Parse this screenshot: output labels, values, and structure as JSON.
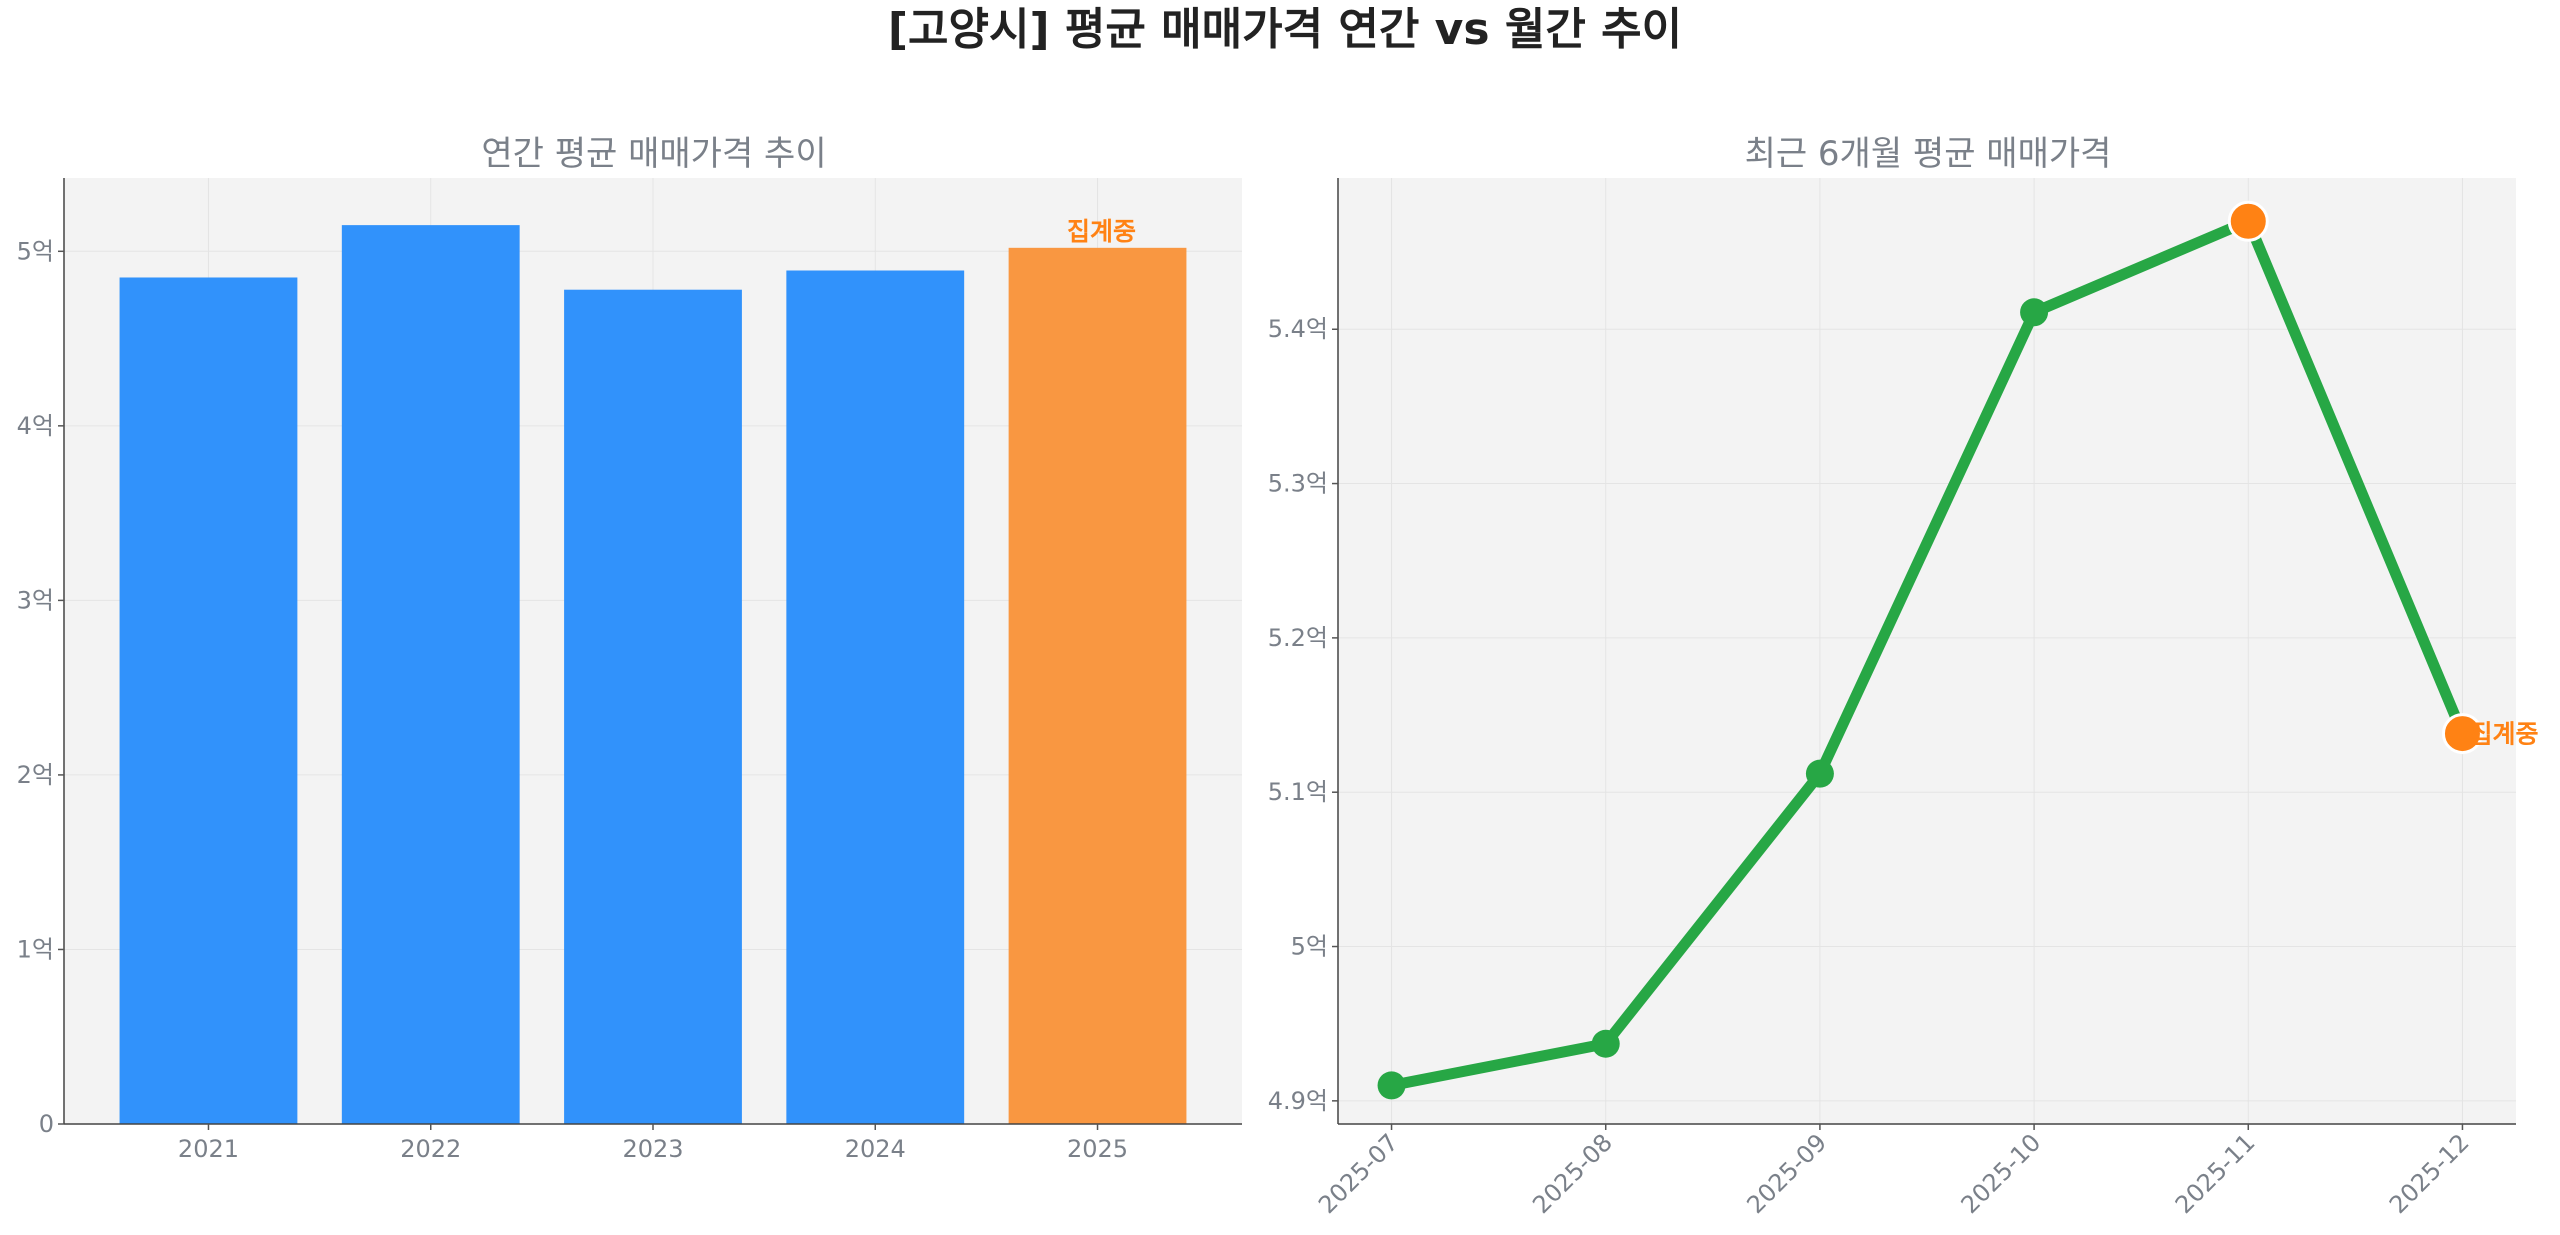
{
  "page_title": "[고양시] 평균 매매가격 연간 vs 월간 추이",
  "colors": {
    "bar": "#3192FB",
    "bar_highlight": "#F99741",
    "line": "#27A745",
    "marker_highlight": "#FF8214",
    "note": "#FF8214",
    "plot_background": "#F3F3F3",
    "grid": "#E4E4E4"
  },
  "chart_data": [
    {
      "type": "bar",
      "title": "연간 평균 매매가격 추이",
      "categories": [
        "2021",
        "2022",
        "2023",
        "2024",
        "2025"
      ],
      "values": [
        48500,
        51500,
        47800,
        48900,
        50200
      ],
      "highlight_index": 4,
      "annotation": "집계중",
      "ylim": [
        0,
        54200
      ],
      "yticks": [
        {
          "value": 0,
          "label": "0"
        },
        {
          "value": 10000,
          "label": "1억"
        },
        {
          "value": 20000,
          "label": "2억"
        },
        {
          "value": 30000,
          "label": "3억"
        },
        {
          "value": 40000,
          "label": "4억"
        },
        {
          "value": 50000,
          "label": "5억"
        }
      ],
      "grid": true,
      "xlabel": "",
      "ylabel": ""
    },
    {
      "type": "line",
      "title": "최근 6개월 평균 매매가격",
      "categories": [
        "2025-07",
        "2025-08",
        "2025-09",
        "2025-10",
        "2025-11",
        "2025-12"
      ],
      "values": [
        49100,
        49370,
        51120,
        54110,
        54700,
        51380
      ],
      "highlight_indices": [
        4,
        5
      ],
      "annotation": "집계중",
      "ylim": [
        48850,
        54980
      ],
      "yticks": [
        {
          "value": 49000,
          "label": "4.9억"
        },
        {
          "value": 50000,
          "label": "5억"
        },
        {
          "value": 51000,
          "label": "5.1억"
        },
        {
          "value": 52000,
          "label": "5.2억"
        },
        {
          "value": 53000,
          "label": "5.3억"
        },
        {
          "value": 54000,
          "label": "5.4억"
        }
      ],
      "grid": true,
      "xlabel": "",
      "ylabel": ""
    }
  ]
}
